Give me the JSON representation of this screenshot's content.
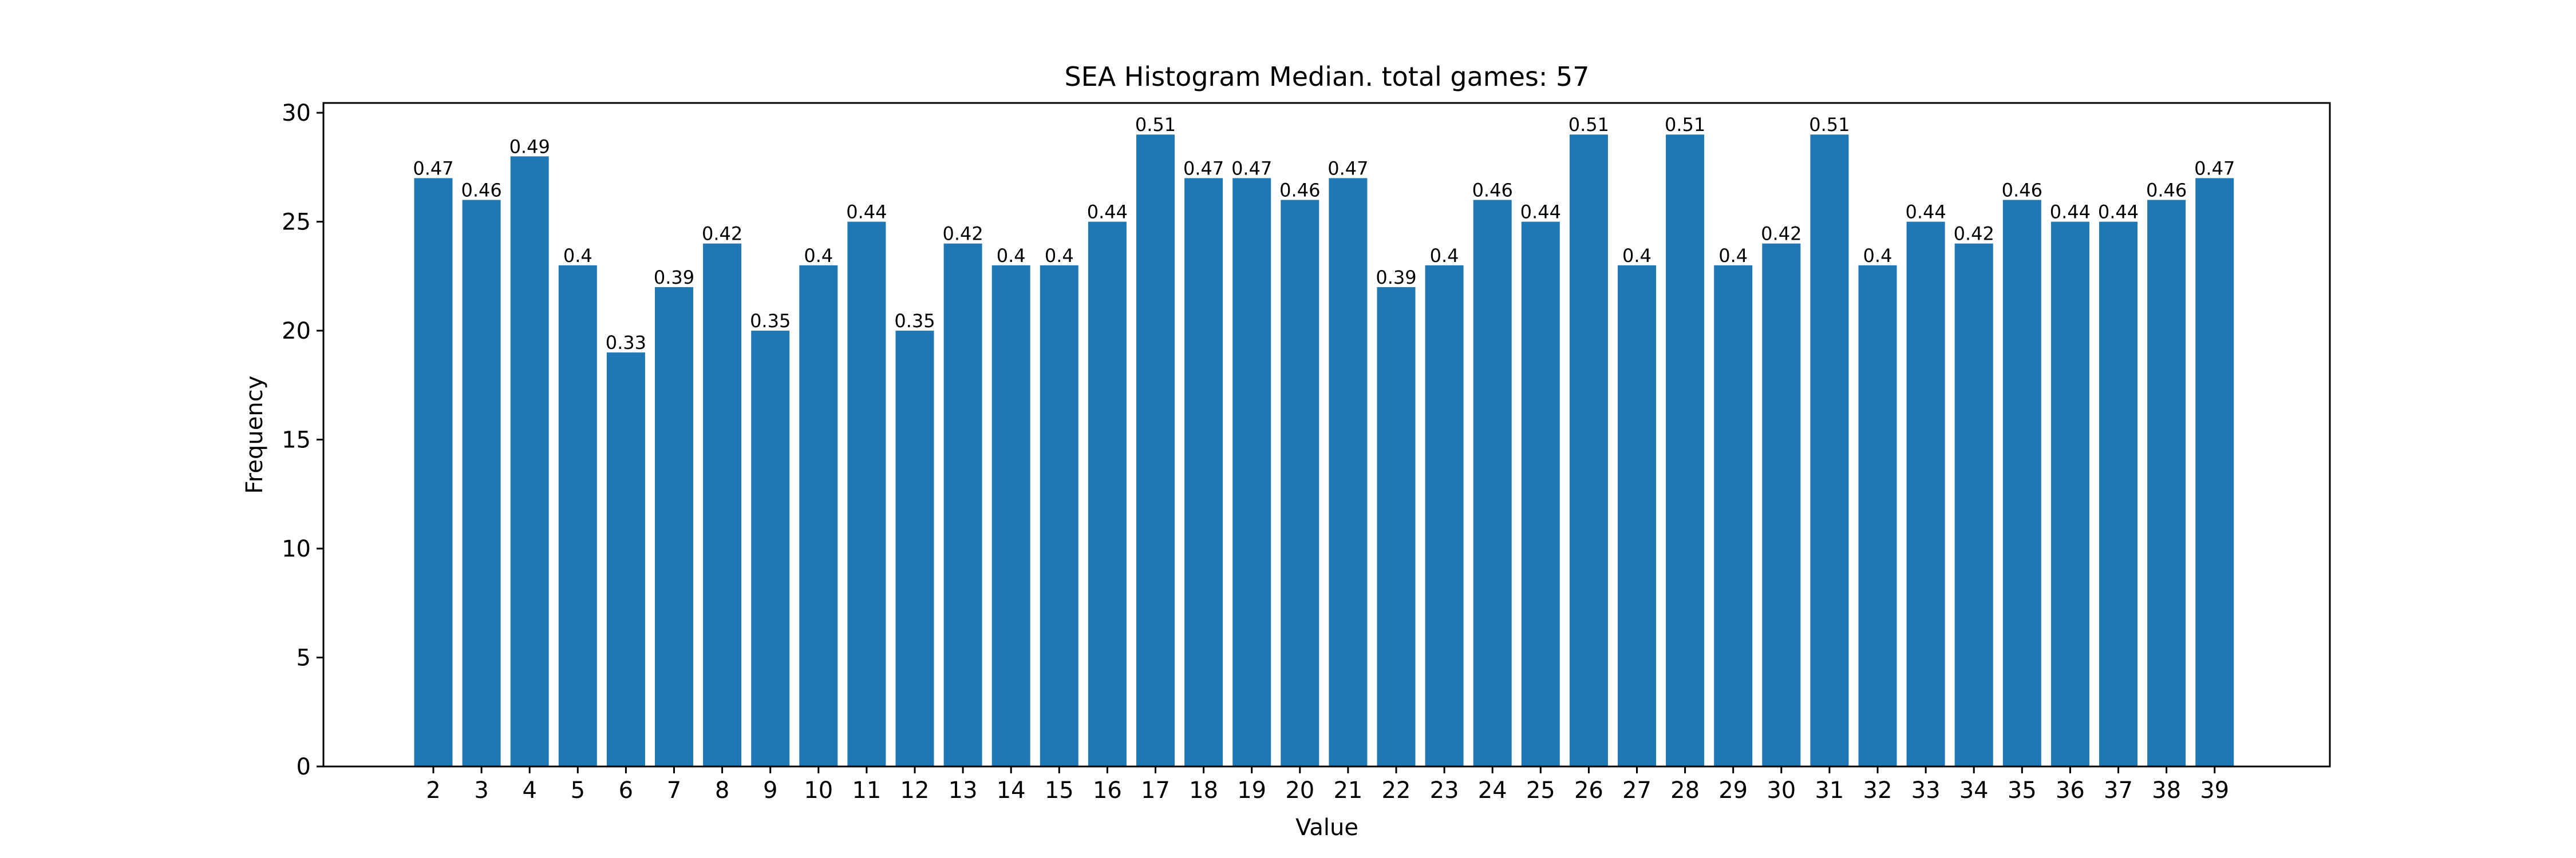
{
  "chart_data": {
    "type": "bar",
    "title": "SEA Histogram Median. total games: 57",
    "xlabel": "Value",
    "ylabel": "Frequency",
    "ylim": [
      0,
      30.45
    ],
    "yticks": [
      0,
      5,
      10,
      15,
      20,
      25,
      30
    ],
    "grid": false,
    "bar_color": "#1f77b4",
    "categories": [
      "2",
      "3",
      "4",
      "5",
      "6",
      "7",
      "8",
      "9",
      "10",
      "11",
      "12",
      "13",
      "14",
      "15",
      "16",
      "17",
      "18",
      "19",
      "20",
      "21",
      "22",
      "23",
      "24",
      "25",
      "26",
      "27",
      "28",
      "29",
      "30",
      "31",
      "32",
      "33",
      "34",
      "35",
      "36",
      "37",
      "38",
      "39"
    ],
    "values": [
      27,
      26,
      28,
      23,
      19,
      22,
      24,
      20,
      23,
      25,
      20,
      24,
      23,
      23,
      25,
      29,
      27,
      27,
      26,
      27,
      22,
      23,
      26,
      25,
      29,
      23,
      29,
      23,
      24,
      29,
      23,
      25,
      24,
      26,
      25,
      25,
      26,
      27
    ],
    "bar_labels": [
      "0.47",
      "0.46",
      "0.49",
      "0.4",
      "0.33",
      "0.39",
      "0.42",
      "0.35",
      "0.4",
      "0.44",
      "0.35",
      "0.42",
      "0.4",
      "0.4",
      "0.44",
      "0.51",
      "0.47",
      "0.47",
      "0.46",
      "0.47",
      "0.39",
      "0.4",
      "0.46",
      "0.44",
      "0.51",
      "0.4",
      "0.51",
      "0.4",
      "0.42",
      "0.51",
      "0.4",
      "0.44",
      "0.42",
      "0.46",
      "0.44",
      "0.44",
      "0.46",
      "0.47"
    ]
  }
}
